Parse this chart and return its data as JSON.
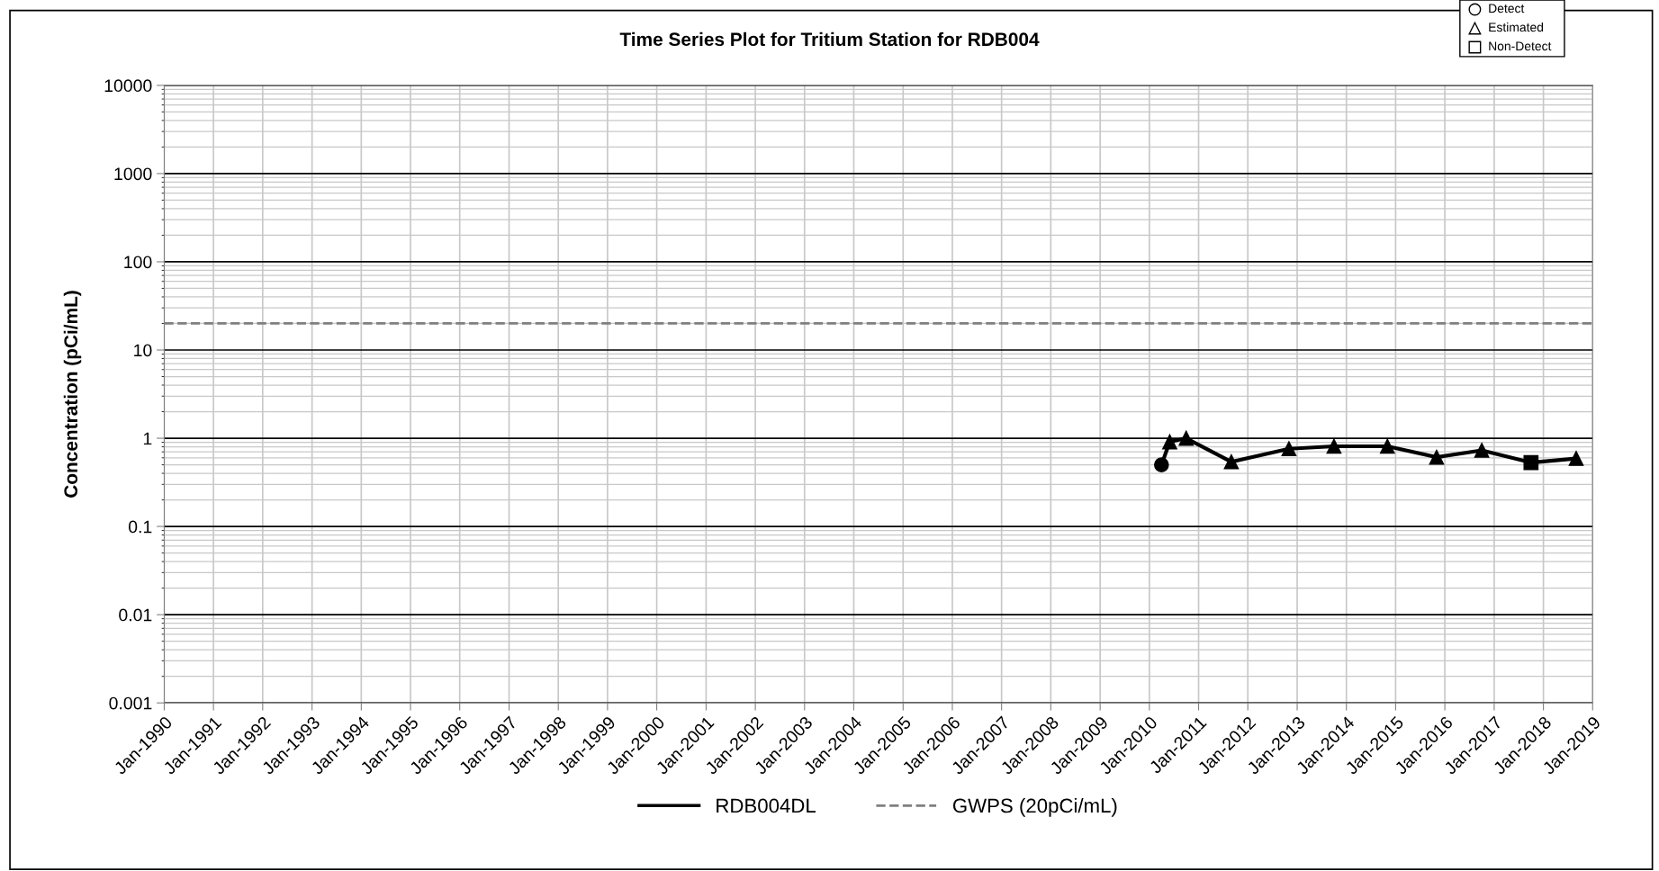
{
  "chart_data": {
    "type": "line",
    "title": "Time Series Plot for Tritium Station for RDB004",
    "ylabel": "Concentration (pCi/mL)",
    "x": [
      "2010-04",
      "2010-06",
      "2010-10",
      "2011-09",
      "2012-11",
      "2013-10",
      "2014-11",
      "2015-11",
      "2016-10",
      "2017-10",
      "2018-09"
    ],
    "series": [
      {
        "name": "RDB004DL",
        "color": "#000000",
        "marker": "none",
        "line_style": "solid",
        "values": [
          0.5,
          0.91,
          1.0,
          0.54,
          0.76,
          0.81,
          0.81,
          0.61,
          0.73,
          0.53,
          0.59
        ]
      },
      {
        "type": "scatter",
        "color": "#000000",
        "marker": "circle",
        "x": [
          "2010-04"
        ],
        "values": [
          0.5
        ]
      },
      {
        "type": "scatter",
        "color": "#000000",
        "marker": "triangle",
        "x": [
          "2010-06",
          "2010-10",
          "2011-09",
          "2012-11",
          "2013-10",
          "2014-11",
          "2015-11",
          "2016-10",
          "2018-09"
        ],
        "values": [
          0.91,
          1.0,
          0.54,
          0.76,
          0.81,
          0.81,
          0.61,
          0.73,
          0.59
        ]
      },
      {
        "type": "scatter",
        "color": "#000000",
        "marker": "square",
        "x": [
          "2017-10"
        ],
        "values": [
          0.53
        ]
      }
    ],
    "ref_lines": [
      {
        "axis": "y",
        "value": 20,
        "label": "GWPS (20pCi/mL)",
        "color": "#808080",
        "line_style": "dashed"
      }
    ],
    "log": "y",
    "ylim": [
      0.001,
      10000
    ],
    "yticks": [
      {
        "value": 0.001,
        "label": "0.001"
      },
      {
        "value": 0.01,
        "label": "0.01"
      },
      {
        "value": 0.1,
        "label": "0.1"
      },
      {
        "value": 1,
        "label": "1"
      },
      {
        "value": 10,
        "label": "10"
      },
      {
        "value": 100,
        "label": "100"
      },
      {
        "value": 1000,
        "label": "1000"
      },
      {
        "value": 10000,
        "label": "10000"
      }
    ],
    "xlim": [
      "1990-01",
      "2019-01"
    ],
    "xticks": [
      {
        "value": "1990-01",
        "label": "Jan-1990"
      },
      {
        "value": "1991-01",
        "label": "Jan-1991"
      },
      {
        "value": "1992-01",
        "label": "Jan-1992"
      },
      {
        "value": "1993-01",
        "label": "Jan-1993"
      },
      {
        "value": "1994-01",
        "label": "Jan-1994"
      },
      {
        "value": "1995-01",
        "label": "Jan-1995"
      },
      {
        "value": "1996-01",
        "label": "Jan-1996"
      },
      {
        "value": "1997-01",
        "label": "Jan-1997"
      },
      {
        "value": "1998-01",
        "label": "Jan-1998"
      },
      {
        "value": "1999-01",
        "label": "Jan-1999"
      },
      {
        "value": "2000-01",
        "label": "Jan-2000"
      },
      {
        "value": "2001-01",
        "label": "Jan-2001"
      },
      {
        "value": "2002-01",
        "label": "Jan-2002"
      },
      {
        "value": "2003-01",
        "label": "Jan-2003"
      },
      {
        "value": "2004-01",
        "label": "Jan-2004"
      },
      {
        "value": "2005-01",
        "label": "Jan-2005"
      },
      {
        "value": "2006-01",
        "label": "Jan-2006"
      },
      {
        "value": "2007-01",
        "label": "Jan-2007"
      },
      {
        "value": "2008-01",
        "label": "Jan-2008"
      },
      {
        "value": "2009-01",
        "label": "Jan-2009"
      },
      {
        "value": "2010-01",
        "label": "Jan-2010"
      },
      {
        "value": "2011-01",
        "label": "Jan-2011"
      },
      {
        "value": "2012-01",
        "label": "Jan-2012"
      },
      {
        "value": "2013-01",
        "label": "Jan-2013"
      },
      {
        "value": "2014-01",
        "label": "Jan-2014"
      },
      {
        "value": "2015-01",
        "label": "Jan-2015"
      },
      {
        "value": "2016-01",
        "label": "Jan-2016"
      },
      {
        "value": "2017-01",
        "label": "Jan-2017"
      },
      {
        "value": "2018-01",
        "label": "Jan-2018"
      },
      {
        "value": "2019-01",
        "label": "Jan-2019"
      }
    ],
    "grid": true,
    "legend": "bottom",
    "annotations": [
      "Detect",
      "Estimated",
      "Non-Detect"
    ]
  }
}
